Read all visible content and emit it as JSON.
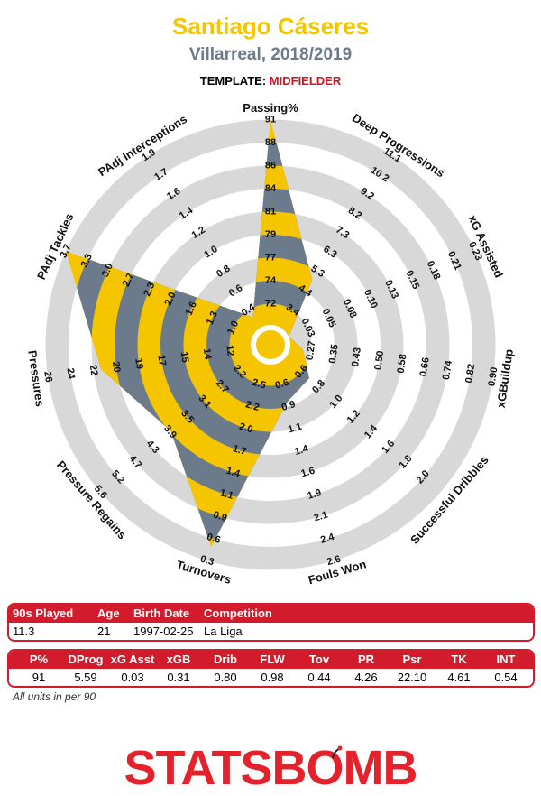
{
  "header": {
    "player_name": "Santiago Cáseres",
    "team_season": "Villarreal, 2018/2019",
    "template_label": "TEMPLATE:",
    "template_value": "MIDFIELDER"
  },
  "colors": {
    "accent_gold": "#f5c500",
    "slate": "#6b7b8c",
    "ring_gray": "#d8d8d8",
    "brand_red": "#d21c2b"
  },
  "chart_data": {
    "type": "radar",
    "axes": [
      {
        "label": "Passing%",
        "ticks": [
          "72",
          "74",
          "77",
          "79",
          "81",
          "84",
          "86",
          "88",
          "91"
        ],
        "value": 91,
        "fraction": 1.0
      },
      {
        "label": "Deep Progressions",
        "ticks": [
          "3.4",
          "4.4",
          "5.3",
          "6.3",
          "7.3",
          "8.2",
          "9.2",
          "10.2",
          "11.1"
        ],
        "value": 5.59,
        "fraction": 0.285
      },
      {
        "label": "xG Assisted",
        "ticks": [
          "0.03",
          "0.05",
          "0.08",
          "0.10",
          "0.13",
          "0.15",
          "0.18",
          "0.21",
          "0.23"
        ],
        "value": 0.03,
        "fraction": 0.01
      },
      {
        "label": "xGBuildup",
        "ticks": [
          "0.27",
          "0.35",
          "0.43",
          "0.50",
          "0.58",
          "0.66",
          "0.74",
          "0.82",
          "0.90"
        ],
        "value": 0.31,
        "fraction": 0.07
      },
      {
        "label": "Successful Dribbles",
        "ticks": [
          "0.6",
          "0.8",
          "1.0",
          "1.2",
          "1.4",
          "1.6",
          "1.8",
          "2.0"
        ],
        "value": 0.8,
        "fraction": 0.16
      },
      {
        "label": "Fouls Won",
        "ticks": [
          "0.6",
          "0.9",
          "1.1",
          "1.4",
          "1.6",
          "1.9",
          "2.1",
          "2.4",
          "2.6"
        ],
        "value": 0.98,
        "fraction": 0.2
      },
      {
        "label": "Turnovers",
        "ticks": [
          "2.5",
          "2.2",
          "2.0",
          "1.7",
          "1.4",
          "1.1",
          "0.9",
          "0.6",
          "0.3"
        ],
        "value": 0.44,
        "fraction": 0.93
      },
      {
        "label": "Pressure Regains",
        "ticks": [
          "2.2",
          "2.7",
          "3.1",
          "3.5",
          "3.9",
          "4.3",
          "4.7",
          "5.2",
          "5.6"
        ],
        "value": 4.26,
        "fraction": 0.55
      },
      {
        "label": "Pressures",
        "ticks": [
          "12",
          "14",
          "15",
          "17",
          "19",
          "20",
          "22",
          "24",
          "26"
        ],
        "value": 22.1,
        "fraction": 0.74
      },
      {
        "label": "PAdj Tackles",
        "ticks": [
          "1.0",
          "1.3",
          "1.6",
          "2.0",
          "2.3",
          "2.7",
          "3.0",
          "3.3",
          "3.7"
        ],
        "value": 4.61,
        "fraction": 1.0
      },
      {
        "label": "PAdj Interceptions",
        "ticks": [
          "0.4",
          "0.6",
          "0.8",
          "1.0",
          "1.2",
          "1.4",
          "1.6",
          "1.7",
          "1.9"
        ],
        "value": 0.54,
        "fraction": 0.07
      }
    ]
  },
  "table1": {
    "headers": [
      "90s Played",
      "Age",
      "Birth Date",
      "Competition"
    ],
    "values": [
      "11.3",
      "21",
      "1997-02-25",
      "La Liga"
    ]
  },
  "table2": {
    "headers": [
      "P%",
      "DProg",
      "xG Asst",
      "xGB",
      "Drib",
      "FLW",
      "Tov",
      "PR",
      "Psr",
      "TK",
      "INT"
    ],
    "values": [
      "91",
      "5.59",
      "0.03",
      "0.31",
      "0.80",
      "0.98",
      "0.44",
      "4.26",
      "22.10",
      "4.61",
      "0.54"
    ]
  },
  "footnote": "All units in per 90",
  "logo_text": "STATSBOMB"
}
